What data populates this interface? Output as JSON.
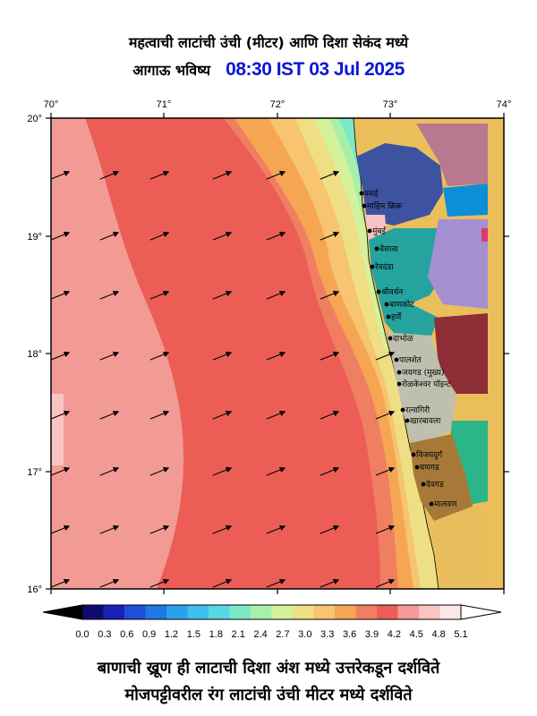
{
  "header": {
    "title_line1": "महत्वाची लाटांची उंची (मीटर) आणि दिशा सेकंद मध्ये",
    "title_line2_label": "आगाऊ भविष्य",
    "title_line2_time": "08:30 IST 03 Jul 2025"
  },
  "axes": {
    "lon_ticks": [
      "70°",
      "71°",
      "72°",
      "73°",
      "74°"
    ],
    "lat_ticks": [
      "20°",
      "19°",
      "18°",
      "17°",
      "16°"
    ]
  },
  "places": [
    {
      "id": "vasai",
      "name": "वसई"
    },
    {
      "id": "mahim",
      "name": "माहिम क्रिक"
    },
    {
      "id": "mumbai",
      "name": "मुंबई"
    },
    {
      "id": "versova",
      "name": "वेसावा"
    },
    {
      "id": "revdanda",
      "name": "रेवदंडा"
    },
    {
      "id": "shrivardhan",
      "name": "श्रीवर्धन"
    },
    {
      "id": "bankot",
      "name": "बाणकोट"
    },
    {
      "id": "harne",
      "name": "हर्णे"
    },
    {
      "id": "dabhol",
      "name": "दाभोळ"
    },
    {
      "id": "palshet",
      "name": "पालशेत"
    },
    {
      "id": "jaigad",
      "name": "जयगड (मुख्य)"
    },
    {
      "id": "rolkeshwar",
      "name": "रोळकेश्वर पॉइन्ट"
    },
    {
      "id": "ratnagiri",
      "name": "रत्नागिरी"
    },
    {
      "id": "kharbawla",
      "name": "खारबावला"
    },
    {
      "id": "vijaydurg",
      "name": "विजयदुर्ग"
    },
    {
      "id": "ghangad",
      "name": "घणगड"
    },
    {
      "id": "devgad",
      "name": "देवगड"
    },
    {
      "id": "malvan",
      "name": "मालवण"
    }
  ],
  "colorbar": {
    "labels": [
      "0.0",
      "0.3",
      "0.6",
      "0.9",
      "1.2",
      "1.5",
      "1.8",
      "2.1",
      "2.4",
      "2.7",
      "3.0",
      "3.3",
      "3.6",
      "3.9",
      "4.2",
      "4.5",
      "4.8",
      "5.1"
    ],
    "colors": [
      "#0e0b70",
      "#1a22b5",
      "#1f4ed8",
      "#1f78e6",
      "#2aa0ee",
      "#3cc0f0",
      "#58d8e4",
      "#7de8c6",
      "#a8f0a8",
      "#d3f29b",
      "#eedf85",
      "#f7c46f",
      "#f6a652",
      "#f07f62",
      "#ec5e55",
      "#f49a96",
      "#f8c4c4",
      "#fde6e6"
    ],
    "under_color": "#000000",
    "over_color": "#ffffff"
  },
  "footer": {
    "line1": "बाणाची ख्रूण ही लाटाची दिशा अंश मध्ये उत्तरेकडून दर्शविते",
    "line2": "मोजपट्टीवरील रंग लाटांची उंची मीटर मध्ये दर्शविते"
  }
}
